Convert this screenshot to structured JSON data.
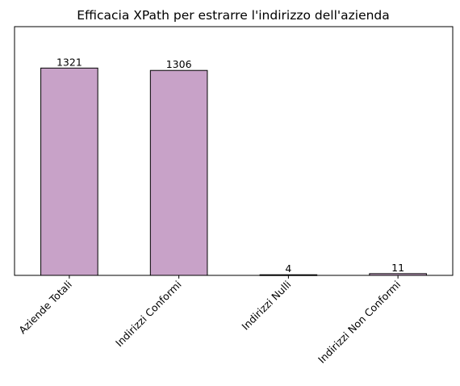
{
  "chart_data": {
    "type": "bar",
    "title": "Efficacia XPath per estrarre l'indirizzo dell'azienda",
    "xlabel": "",
    "ylabel": "",
    "categories": [
      "Aziende Totali",
      "Indirizzi Conformi",
      "Indirizzi Nulli",
      "Indirizzi Non Conformi"
    ],
    "values": [
      1321,
      1306,
      4,
      11
    ],
    "data_labels": [
      "1321",
      "1306",
      "4",
      "11"
    ],
    "ylim": [
      0,
      1585
    ],
    "y_axis_visible": false,
    "grid": false,
    "legend": "none",
    "bar_color": "#c8a2c8",
    "edge_color": "#000000"
  }
}
